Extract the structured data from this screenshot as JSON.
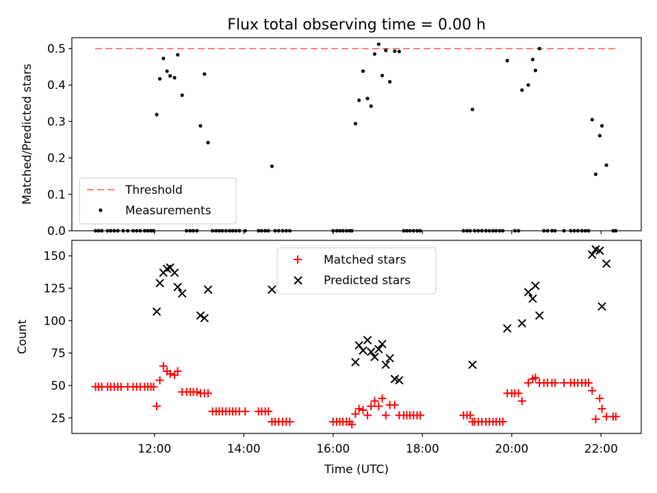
{
  "title": "Flux total observing time = 0.00 h",
  "chart_data": [
    {
      "type": "scatter",
      "ylabel": "Matched/Predicted stars",
      "ylim": [
        0,
        0.53
      ],
      "xlim": [
        10.15,
        22.9
      ],
      "yticks": [
        "0.0",
        "0.1",
        "0.2",
        "0.3",
        "0.4",
        "0.5"
      ],
      "threshold": {
        "name": "Threshold",
        "y": 0.5,
        "x": [
          10.67,
          22.33
        ],
        "color": "#ff7f7f"
      },
      "series": [
        {
          "name": "Measurements",
          "color": "#000000",
          "x": [
            12.05,
            12.12,
            12.2,
            12.28,
            12.35,
            12.45,
            12.52,
            12.62,
            13.03,
            13.12,
            13.2,
            14.63,
            16.5,
            16.58,
            16.67,
            16.77,
            16.85,
            16.93,
            17.02,
            17.1,
            17.18,
            17.27,
            17.38,
            17.48,
            19.12,
            19.9,
            20.23,
            20.37,
            20.47,
            20.53,
            20.62,
            21.8,
            21.88,
            21.97,
            22.02,
            22.12
          ],
          "y": [
            0.319,
            0.417,
            0.473,
            0.438,
            0.425,
            0.42,
            0.483,
            0.372,
            0.288,
            0.43,
            0.242,
            0.177,
            0.294,
            0.358,
            0.438,
            0.363,
            0.342,
            0.485,
            0.512,
            0.426,
            0.495,
            0.409,
            0.493,
            0.492,
            0.333,
            0.467,
            0.386,
            0.4,
            0.47,
            0.44,
            0.5,
            0.305,
            0.155,
            0.261,
            0.288,
            0.18
          ]
        },
        {
          "name": "Measurements (zero)",
          "color": "#000000",
          "x": [
            10.68,
            10.75,
            10.82,
            10.95,
            11.02,
            11.1,
            11.18,
            11.3,
            11.4,
            11.52,
            11.6,
            11.68,
            11.78,
            11.85,
            11.92,
            11.98,
            12.72,
            12.8,
            12.87,
            12.95,
            13.3,
            13.38,
            13.45,
            13.52,
            13.6,
            13.68,
            13.75,
            13.82,
            13.9,
            14.03,
            14.33,
            14.4,
            14.48,
            14.55,
            14.7,
            14.78,
            14.87,
            14.95,
            15.03,
            16.0,
            16.08,
            16.15,
            16.22,
            16.3,
            16.37,
            16.42,
            17.58,
            17.65,
            17.72,
            17.8,
            17.88,
            17.95,
            18.92,
            19.0,
            19.07,
            19.17,
            19.25,
            19.33,
            19.42,
            19.5,
            19.58,
            19.65,
            19.73,
            19.8,
            20.07,
            20.15,
            20.72,
            20.8,
            20.9,
            20.97,
            21.17,
            21.32,
            21.4,
            21.48,
            21.57,
            21.65,
            21.72,
            22.27,
            22.33
          ],
          "y_value": 0
        }
      ]
    },
    {
      "type": "scatter",
      "ylabel": "Count",
      "xlabel": "Time (UTC)",
      "ylim": [
        13,
        162
      ],
      "xlim": [
        10.15,
        22.9
      ],
      "yticks": [
        "25",
        "50",
        "75",
        "100",
        "125",
        "150"
      ],
      "xticks": [
        {
          "value": 12,
          "label": "12:00"
        },
        {
          "value": 14,
          "label": "14:00"
        },
        {
          "value": 16,
          "label": "16:00"
        },
        {
          "value": 18,
          "label": "18:00"
        },
        {
          "value": 20,
          "label": "20:00"
        },
        {
          "value": 22,
          "label": "22:00"
        }
      ],
      "series": [
        {
          "name": "Matched stars",
          "marker": "+",
          "color": "#ff0000",
          "x": [
            10.68,
            10.75,
            10.82,
            10.95,
            11.02,
            11.1,
            11.18,
            11.25,
            11.4,
            11.52,
            11.6,
            11.68,
            11.78,
            11.85,
            11.92,
            11.98,
            12.05,
            12.12,
            12.2,
            12.28,
            12.35,
            12.45,
            12.52,
            12.62,
            12.72,
            12.8,
            12.87,
            12.95,
            13.03,
            13.12,
            13.2,
            13.3,
            13.38,
            13.45,
            13.52,
            13.6,
            13.68,
            13.75,
            13.82,
            13.9,
            14.03,
            14.33,
            14.4,
            14.48,
            14.55,
            14.63,
            14.7,
            14.78,
            14.87,
            14.95,
            15.03,
            16.0,
            16.08,
            16.15,
            16.22,
            16.3,
            16.37,
            16.42,
            16.5,
            16.58,
            16.67,
            16.77,
            16.85,
            16.93,
            17.02,
            17.1,
            17.18,
            17.27,
            17.38,
            17.48,
            17.58,
            17.65,
            17.72,
            17.8,
            17.88,
            17.95,
            18.92,
            19.0,
            19.07,
            19.12,
            19.17,
            19.25,
            19.33,
            19.42,
            19.5,
            19.58,
            19.65,
            19.73,
            19.8,
            19.9,
            20.0,
            20.07,
            20.15,
            20.23,
            20.37,
            20.47,
            20.53,
            20.62,
            20.72,
            20.8,
            20.9,
            20.97,
            21.17,
            21.32,
            21.4,
            21.48,
            21.57,
            21.65,
            21.72,
            21.8,
            21.88,
            21.97,
            22.02,
            22.12,
            22.27,
            22.33
          ],
          "y": [
            49,
            49,
            49,
            49,
            49,
            49,
            49,
            49,
            49,
            49,
            49,
            49,
            49,
            49,
            49,
            49,
            34,
            54,
            65,
            61,
            59,
            58,
            61,
            45,
            45,
            45,
            45,
            45,
            44,
            44,
            44,
            30,
            30,
            30,
            30,
            30,
            30,
            30,
            30,
            30,
            30,
            30,
            30,
            30,
            30,
            22,
            22,
            22,
            22,
            22,
            22,
            22,
            22,
            22,
            22,
            22,
            22,
            20,
            28,
            32,
            31,
            27,
            34,
            38,
            34,
            40,
            27,
            35,
            35,
            27,
            27,
            27,
            27,
            27,
            27,
            27,
            27,
            27,
            27,
            22,
            22,
            22,
            22,
            22,
            22,
            22,
            22,
            22,
            22,
            44,
            44,
            44,
            44,
            38,
            52,
            55,
            56,
            52,
            52,
            52,
            52,
            52,
            52,
            52,
            52,
            52,
            52,
            52,
            52,
            46,
            24,
            40,
            32,
            26,
            26,
            26
          ]
        },
        {
          "name": "Predicted stars",
          "marker": "x",
          "color": "#000000",
          "x": [
            12.05,
            12.12,
            12.2,
            12.28,
            12.35,
            12.45,
            12.52,
            12.62,
            13.03,
            13.12,
            13.2,
            14.63,
            16.5,
            16.58,
            16.67,
            16.77,
            16.85,
            16.93,
            17.02,
            17.1,
            17.18,
            17.27,
            17.38,
            17.48,
            19.12,
            19.9,
            20.23,
            20.37,
            20.47,
            20.53,
            20.62,
            21.8,
            21.88,
            21.97,
            22.02,
            22.12
          ],
          "y": [
            107,
            129,
            137,
            140,
            141,
            137,
            126,
            121,
            104,
            102,
            124,
            124,
            68,
            81,
            77,
            85,
            76,
            72,
            78,
            82,
            66,
            71,
            55,
            54,
            66,
            94,
            98,
            122,
            117,
            127,
            104,
            151,
            155,
            154,
            111,
            144
          ]
        }
      ]
    }
  ]
}
